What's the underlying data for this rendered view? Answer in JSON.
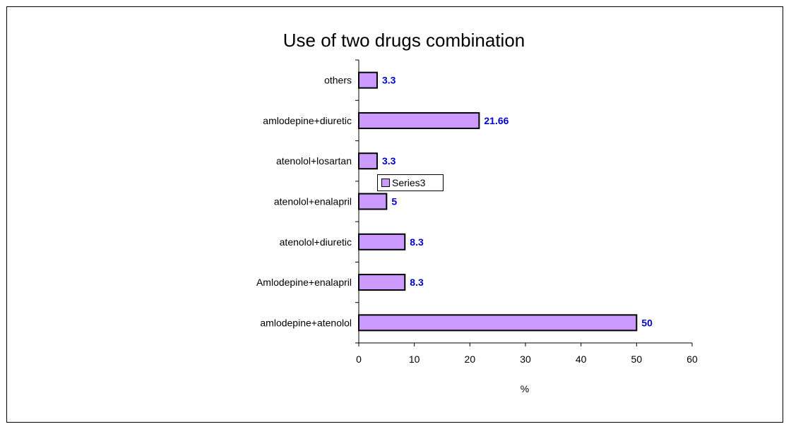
{
  "chart_data": {
    "type": "bar",
    "orientation": "horizontal",
    "title": "Use of two drugs combination",
    "xlabel": "%",
    "ylabel": "",
    "categories": [
      "others",
      "amlodepine+diuretic",
      "atenolol+losartan",
      "atenolol+enalapril",
      "atenolol+diuretic",
      "Amlodepine+enalapril",
      "amlodepine+atenolol"
    ],
    "series": [
      {
        "name": "Series3",
        "values": [
          3.3,
          21.66,
          3.3,
          5,
          8.3,
          8.3,
          50
        ],
        "data_labels": [
          "3.3",
          "21.66",
          "3.3",
          "5",
          "8.3",
          "8.3",
          "50"
        ]
      }
    ],
    "xlim": [
      0,
      60
    ],
    "xticks": [
      0,
      10,
      20,
      30,
      40,
      50,
      60
    ],
    "grid": false,
    "legend": "right",
    "colors": {
      "bar_fill": "#cc99ff",
      "bar_stroke": "#000000",
      "data_label": "#0000cc"
    }
  }
}
